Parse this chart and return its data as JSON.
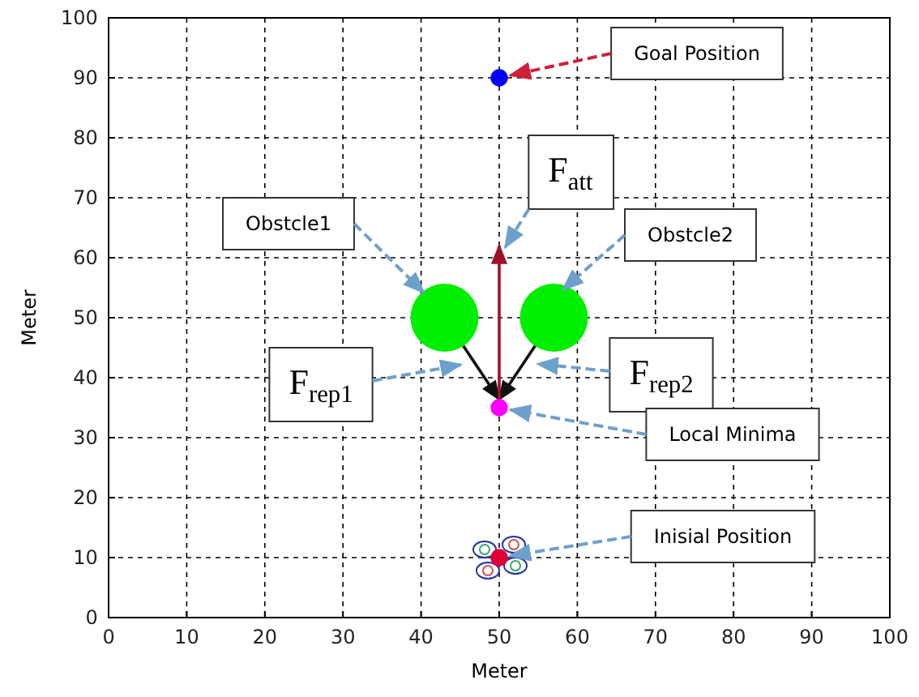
{
  "chart_data": {
    "type": "scatter",
    "xlabel": "Meter",
    "ylabel": "Meter",
    "xlim": [
      0,
      100
    ],
    "ylim": [
      0,
      100
    ],
    "xticks": [
      0,
      10,
      20,
      30,
      40,
      50,
      60,
      70,
      80,
      90,
      100
    ],
    "yticks": [
      0,
      10,
      20,
      30,
      40,
      50,
      60,
      70,
      80,
      90,
      100
    ],
    "grid": true,
    "marker": "circle",
    "series": [
      {
        "color": "#0000ff",
        "x": [
          50
        ],
        "values": [
          90
        ]
      },
      {
        "type": "bubble",
        "color": "#00ee00",
        "x": [
          43,
          57
        ],
        "values": [
          50,
          50
        ],
        "sizes": [
          1,
          1
        ]
      },
      {
        "color": "#ff00ff",
        "x": [
          50
        ],
        "values": [
          35
        ]
      },
      {
        "color": "#dd0033",
        "x": [
          50
        ],
        "values": [
          10
        ]
      }
    ],
    "annotations": [
      {
        "text": "Goal Position",
        "x": 50,
        "y": 90
      },
      "F$_{att}$",
      {
        "text": "Obstcle1",
        "x": 40.5,
        "y": 54
      },
      {
        "text": "Obstcle2",
        "x": 58,
        "y": 54.5
      },
      "F$_{rep1}$",
      "F$_{rep2}$",
      {
        "text": "Local Minima",
        "x": 50,
        "y": 35
      },
      {
        "text": "Inisial Position",
        "x": 50,
        "y": 10
      }
    ]
  }
}
